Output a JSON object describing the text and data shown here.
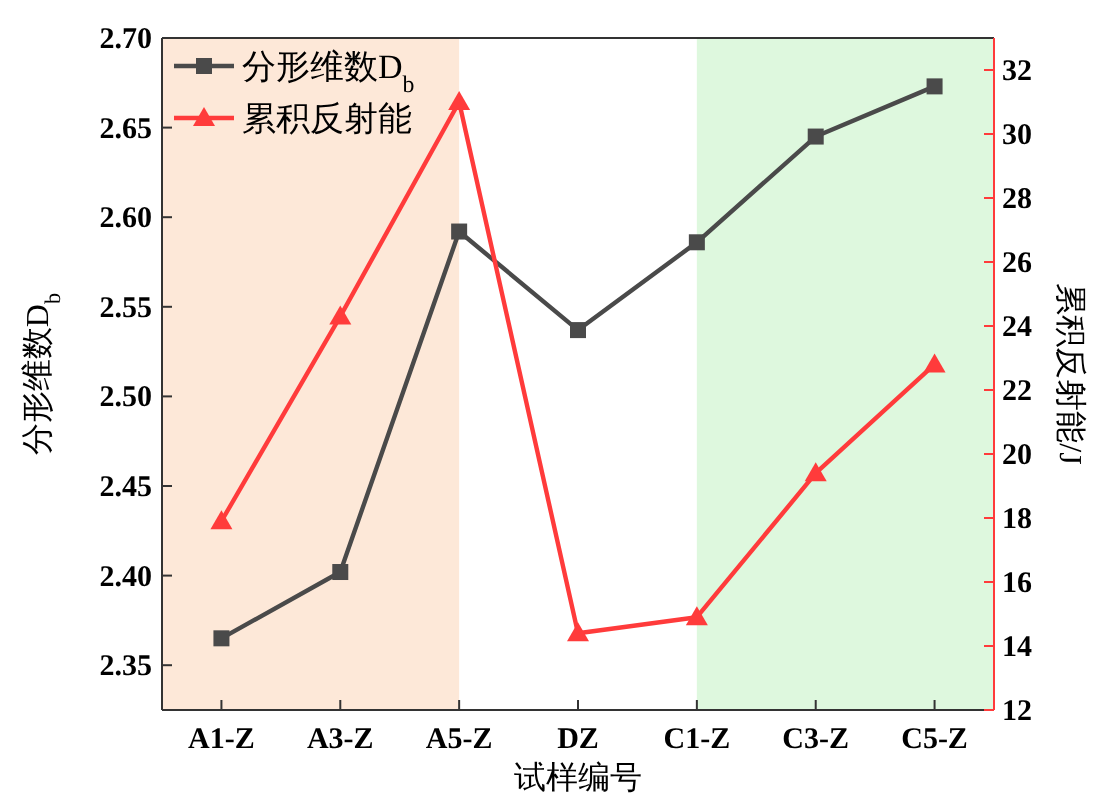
{
  "chart_data": {
    "type": "line",
    "xlabel": "试样编号",
    "ylabel": "分形维数D$_{b}$",
    "y2label": "累积反射能/J",
    "categories": [
      "A1-Z",
      "A3-Z",
      "A5-Z",
      "DZ",
      "C1-Z",
      "C3-Z",
      "C5-Z"
    ],
    "series": [
      {
        "name": "分形维数D$_{b}$",
        "color": "#4a4a4a",
        "marker": "square",
        "values": [
          2.365,
          2.402,
          2.592,
          2.537,
          2.586,
          2.645,
          2.673
        ]
      },
      {
        "name": "累积反射能",
        "color": "#ff3b3b",
        "marker": "triangle",
        "axis": "y2",
        "values": [
          17.9,
          24.3,
          31.0,
          14.4,
          14.9,
          19.4,
          22.8
        ]
      }
    ],
    "ylim": [
      2.325,
      2.7
    ],
    "yticks": [
      2.35,
      {
        "value": 2.4,
        "label": "2.40"
      },
      2.45,
      {
        "value": 2.5,
        "label": "2.50"
      },
      2.55,
      {
        "value": 2.6,
        "label": "2.60"
      },
      2.65,
      {
        "value": 2.7,
        "label": "2.70"
      }
    ],
    "y2lim": [
      12,
      33
    ],
    "y2ticks": [
      12,
      14,
      16,
      18,
      20,
      22,
      24,
      26,
      28,
      30,
      32
    ],
    "bands": [
      {
        "axis": "x",
        "from": "A1-Z",
        "to": "A5-Z",
        "color": "#fde8d8"
      },
      {
        "axis": "x",
        "from": "C1-Z",
        "to": "C5-Z",
        "color": "#def8de"
      }
    ],
    "legend": "top left",
    "grid": false
  }
}
